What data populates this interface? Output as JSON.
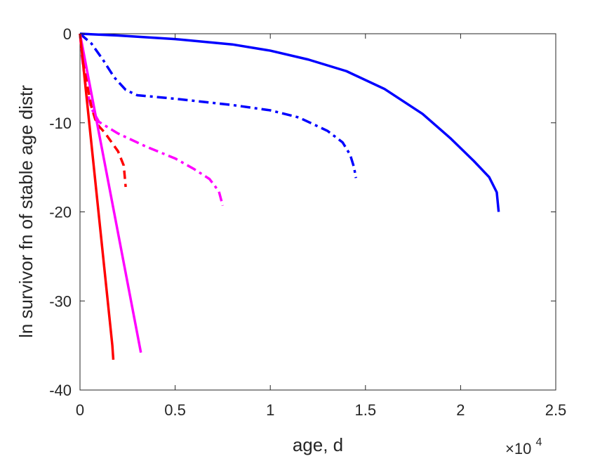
{
  "chart_data": {
    "type": "line",
    "title": "",
    "xlabel": "age, d",
    "ylabel": "ln survivor fn of stable age distr",
    "x_exponent_label": {
      "base": "×10",
      "exponent": "4"
    },
    "xlim": [
      0,
      2.5
    ],
    "ylim": [
      -40,
      0
    ],
    "x_scale_note": "x values are in units of 10^4 days",
    "x_ticks": [
      "0",
      "0.5",
      "1",
      "1.5",
      "2",
      "2.5"
    ],
    "y_ticks": [
      "0",
      "-10",
      "-20",
      "-30",
      "-40"
    ],
    "x_tick_values": [
      0,
      0.5,
      1,
      1.5,
      2,
      2.5
    ],
    "y_tick_values": [
      0,
      -10,
      -20,
      -30,
      -40
    ],
    "grid": false,
    "legend": "none",
    "series": [
      {
        "color": "#0000ff",
        "style": "solid",
        "points": [
          [
            0,
            0
          ],
          [
            0.2,
            -0.2
          ],
          [
            0.5,
            -0.6
          ],
          [
            0.8,
            -1.2
          ],
          [
            1.0,
            -1.9
          ],
          [
            1.2,
            -2.9
          ],
          [
            1.4,
            -4.2
          ],
          [
            1.6,
            -6.2
          ],
          [
            1.8,
            -9.0
          ],
          [
            1.95,
            -11.8
          ],
          [
            2.07,
            -14.3
          ],
          [
            2.15,
            -16.1
          ],
          [
            2.19,
            -17.8
          ],
          [
            2.2,
            -20
          ]
        ]
      },
      {
        "color": "#0000ff",
        "style": "dashdot",
        "points": [
          [
            0,
            0
          ],
          [
            0.06,
            -1.1
          ],
          [
            0.12,
            -2.9
          ],
          [
            0.18,
            -4.9
          ],
          [
            0.24,
            -6.3
          ],
          [
            0.3,
            -6.9
          ],
          [
            0.5,
            -7.3
          ],
          [
            0.8,
            -8.0
          ],
          [
            1.0,
            -8.6
          ],
          [
            1.15,
            -9.4
          ],
          [
            1.3,
            -10.9
          ],
          [
            1.38,
            -12.2
          ],
          [
            1.42,
            -13.6
          ],
          [
            1.44,
            -15.0
          ],
          [
            1.45,
            -16.2
          ]
        ]
      },
      {
        "color": "#ff00ff",
        "style": "dashdot",
        "points": [
          [
            0,
            0
          ],
          [
            0.01,
            -2.5
          ],
          [
            0.03,
            -5.8
          ],
          [
            0.06,
            -8.4
          ],
          [
            0.1,
            -9.9
          ],
          [
            0.2,
            -11.2
          ],
          [
            0.35,
            -12.7
          ],
          [
            0.5,
            -14.0
          ],
          [
            0.6,
            -15.2
          ],
          [
            0.68,
            -16.3
          ],
          [
            0.73,
            -17.7
          ],
          [
            0.75,
            -19.3
          ]
        ]
      },
      {
        "color": "#ff0000",
        "style": "dashed",
        "points": [
          [
            0,
            0
          ],
          [
            0.02,
            -3.0
          ],
          [
            0.04,
            -6.0
          ],
          [
            0.06,
            -8.2
          ],
          [
            0.08,
            -9.6
          ],
          [
            0.1,
            -10.4
          ],
          [
            0.13,
            -11.1
          ],
          [
            0.16,
            -12.0
          ],
          [
            0.2,
            -13.2
          ],
          [
            0.23,
            -14.8
          ],
          [
            0.24,
            -17.2
          ]
        ]
      },
      {
        "color": "#ff00ff",
        "style": "solid",
        "points": [
          [
            0,
            0
          ],
          [
            0.32,
            -35.8
          ]
        ]
      },
      {
        "color": "#ff0000",
        "style": "solid",
        "points": [
          [
            0,
            0
          ],
          [
            0.17,
            -35.0
          ],
          [
            0.175,
            -36.6
          ]
        ]
      }
    ]
  }
}
